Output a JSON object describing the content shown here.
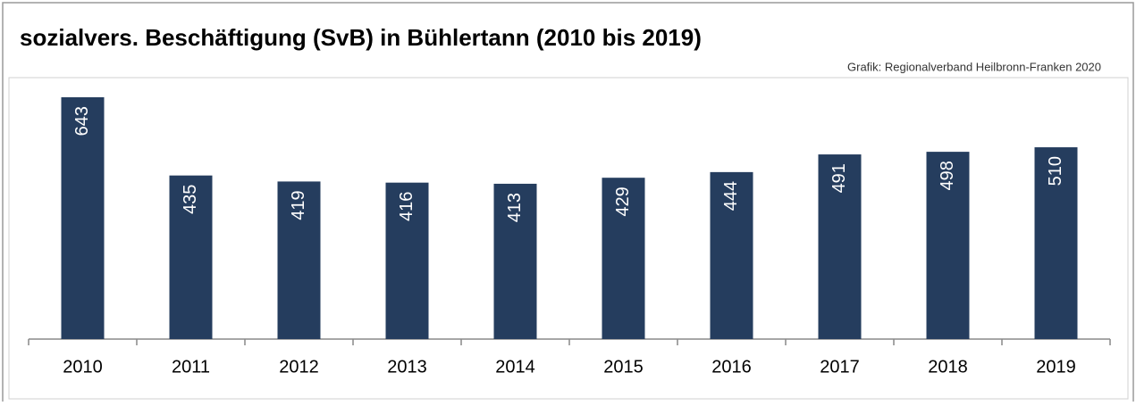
{
  "chart_data": {
    "type": "bar",
    "title": "sozialvers. Beschäftigung (SvB) in Bühlertann (2010 bis 2019)",
    "source": "Grafik: Regionalverband Heilbronn-Franken 2020",
    "categories": [
      "2010",
      "2011",
      "2012",
      "2013",
      "2014",
      "2015",
      "2016",
      "2017",
      "2018",
      "2019"
    ],
    "values": [
      643,
      435,
      419,
      416,
      413,
      429,
      444,
      491,
      498,
      510
    ],
    "color": "#253d5e"
  }
}
